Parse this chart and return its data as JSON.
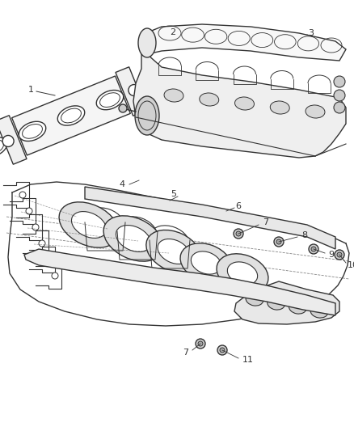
{
  "bg_color": "#ffffff",
  "line_color": "#333333",
  "text_color": "#333333",
  "fig_w": 4.38,
  "fig_h": 5.33,
  "dpi": 100
}
